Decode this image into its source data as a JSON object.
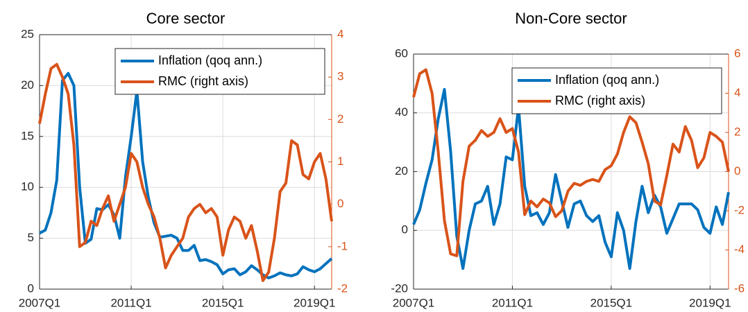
{
  "chart_data": [
    {
      "type": "line",
      "title": "Core sector",
      "categories": [
        "2007Q1",
        null,
        null,
        null,
        null,
        null,
        null,
        null,
        null,
        null,
        null,
        null,
        null,
        null,
        null,
        null,
        "2011Q1",
        null,
        null,
        null,
        null,
        null,
        null,
        null,
        null,
        null,
        null,
        null,
        null,
        null,
        null,
        null,
        "2015Q1",
        null,
        null,
        null,
        null,
        null,
        null,
        null,
        null,
        null,
        null,
        null,
        null,
        null,
        null,
        null,
        "2019Q1",
        null,
        null,
        null
      ],
      "series": [
        {
          "name": "Inflation (qoq ann.)",
          "color": "#0072bd",
          "values": [
            5.5,
            5.8,
            7.5,
            10.7,
            20.5,
            21.2,
            20,
            10,
            4.5,
            4.9,
            7.9,
            7.8,
            8.3,
            7.3,
            5,
            11,
            15,
            19.5,
            12.5,
            9,
            6.5,
            5.1,
            5.2,
            5.3,
            5.0,
            3.8,
            3.8,
            4.3,
            2.8,
            2.9,
            2.7,
            2.4,
            1.5,
            1.9,
            2.0,
            1.4,
            1.7,
            2.3,
            1.9,
            1.4,
            1.1,
            1.3,
            1.6,
            1.4,
            1.3,
            1.5,
            2.2,
            1.9,
            1.7,
            2.0,
            2.5,
            3.0
          ]
        },
        {
          "name": "RMC (right axis)",
          "color": "#d95319",
          "axis": "y2",
          "values": [
            1.9,
            2.6,
            3.2,
            3.3,
            3.0,
            2.6,
            1.4,
            -1.0,
            -0.9,
            -0.4,
            -0.5,
            -0.1,
            0.2,
            -0.4,
            0.0,
            0.4,
            1.2,
            1.0,
            0.4,
            0.0,
            -0.3,
            -0.8,
            -1.5,
            -1.2,
            -1.0,
            -0.8,
            -0.3,
            -0.1,
            0.0,
            -0.2,
            -0.1,
            -0.3,
            -1.2,
            -0.6,
            -0.3,
            -0.4,
            -0.8,
            -0.5,
            -1.1,
            -1.8,
            -1.6,
            -0.8,
            0.3,
            0.5,
            1.5,
            1.4,
            0.7,
            0.6,
            1.0,
            1.2,
            0.6,
            -0.4
          ]
        }
      ],
      "ylim": [
        0,
        25
      ],
      "yticks": [
        0,
        5,
        10,
        15,
        20,
        25
      ],
      "y2lim": [
        -2,
        4
      ],
      "y2ticks": [
        -2,
        -1,
        0,
        1,
        2,
        3,
        4
      ],
      "grid": true,
      "legend": "top-right"
    },
    {
      "type": "line",
      "title": "Non-Core sector",
      "categories": [
        "2007Q1",
        null,
        null,
        null,
        null,
        null,
        null,
        null,
        null,
        null,
        null,
        null,
        null,
        null,
        null,
        null,
        "2011Q1",
        null,
        null,
        null,
        null,
        null,
        null,
        null,
        null,
        null,
        null,
        null,
        null,
        null,
        null,
        null,
        "2015Q1",
        null,
        null,
        null,
        null,
        null,
        null,
        null,
        null,
        null,
        null,
        null,
        null,
        null,
        null,
        null,
        "2019Q1",
        null,
        null,
        null
      ],
      "series": [
        {
          "name": "Inflation (qoq ann.)",
          "color": "#0072bd",
          "values": [
            2,
            7,
            16,
            24,
            38,
            48,
            27,
            -2,
            -13,
            0,
            9,
            10,
            15,
            2,
            9,
            25,
            24,
            42,
            15,
            5,
            6,
            2,
            6,
            19,
            10,
            1,
            9,
            10,
            5,
            3,
            5,
            -4,
            -9,
            6,
            0,
            -13,
            3,
            15,
            6,
            12,
            8,
            -1,
            4,
            9,
            9,
            9,
            7,
            1,
            -1,
            8,
            2,
            13
          ]
        },
        {
          "name": "RMC (right axis)",
          "color": "#d95319",
          "axis": "y2",
          "values": [
            3.8,
            5.0,
            5.2,
            4.0,
            1.0,
            -2.5,
            -4.2,
            -4.3,
            -0.5,
            1.3,
            1.6,
            2.1,
            1.8,
            2.0,
            2.7,
            2.0,
            2.2,
            1.0,
            -2.2,
            -1.5,
            -1.8,
            -1.4,
            -1.6,
            -2.3,
            -2.0,
            -1.0,
            -0.6,
            -0.7,
            -0.5,
            -0.4,
            -0.5,
            0.1,
            0.3,
            0.9,
            2.0,
            2.8,
            2.5,
            1.5,
            0.4,
            -1.5,
            -1.7,
            -0.2,
            1.4,
            1.0,
            2.3,
            1.6,
            0.2,
            0.7,
            2.0,
            1.8,
            1.5,
            0.0
          ]
        }
      ],
      "ylim": [
        -20,
        60
      ],
      "yticks": [
        -20,
        0,
        20,
        40,
        60
      ],
      "y2lim": [
        -6,
        6
      ],
      "y2ticks": [
        -6,
        -4,
        -2,
        0,
        2,
        4,
        6
      ],
      "grid": true,
      "legend": "top-right"
    }
  ]
}
